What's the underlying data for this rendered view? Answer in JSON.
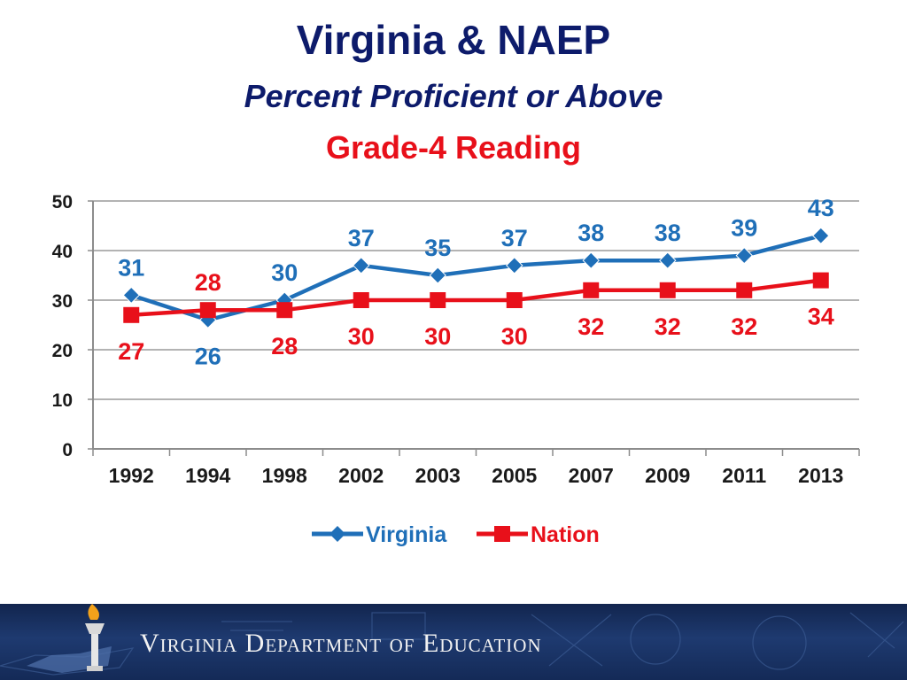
{
  "header": {
    "title": "Virginia & NAEP",
    "subtitle": "Percent Proficient or Above",
    "subtitle2": "Grade-4 Reading"
  },
  "chart_data": {
    "type": "line",
    "categories": [
      "1992",
      "1994",
      "1998",
      "2002",
      "2003",
      "2005",
      "2007",
      "2009",
      "2011",
      "2013"
    ],
    "series": [
      {
        "name": "Virginia",
        "values": [
          31,
          26,
          30,
          37,
          35,
          37,
          38,
          38,
          39,
          43
        ],
        "color": "#1f6fb8",
        "marker": "diamond"
      },
      {
        "name": "Nation",
        "values": [
          27,
          28,
          28,
          30,
          30,
          30,
          32,
          32,
          32,
          34
        ],
        "color": "#e8101a",
        "marker": "square"
      }
    ],
    "yticks": [
      "0",
      "10",
      "20",
      "30",
      "40",
      "50"
    ],
    "ylim": [
      0,
      50
    ],
    "grid": true,
    "legend": "bottom",
    "data_labels": true
  },
  "footer": {
    "org_name": "Virginia Department of Education",
    "logo_icon": "torch-icon",
    "background_color": "#1b3566"
  }
}
